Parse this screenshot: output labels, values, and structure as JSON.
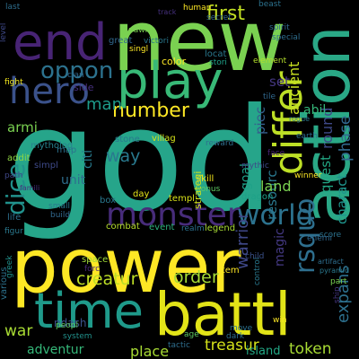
{
  "wordcloud": {
    "background": "#000000",
    "palette": [
      "#440154",
      "#482878",
      "#3e4989",
      "#31688e",
      "#26828e",
      "#1f9e89",
      "#35b779",
      "#6ece58",
      "#b5de2b",
      "#fde725"
    ],
    "words": [
      {
        "text": "god",
        "color": "#26a58a"
      },
      {
        "text": "new",
        "color": "#7ad151"
      },
      {
        "text": "power",
        "color": "#fde725"
      },
      {
        "text": "action",
        "color": "#2aa886"
      },
      {
        "text": "battl",
        "color": "#e2e418"
      },
      {
        "text": "end",
        "color": "#482475"
      },
      {
        "text": "play",
        "color": "#38b977"
      },
      {
        "text": "time",
        "color": "#1f9a8a"
      },
      {
        "text": "hero",
        "color": "#3b528b"
      },
      {
        "text": "differ",
        "color": "#bddf26"
      },
      {
        "text": "monster",
        "color": "#472c7a"
      },
      {
        "text": "world",
        "color": "#2c728e"
      },
      {
        "text": "rsquo",
        "color": "#2e6f8e"
      },
      {
        "text": "dice",
        "color": "#21918c"
      },
      {
        "text": "oppon",
        "color": "#2c728e"
      },
      {
        "text": "first",
        "color": "#c2df23"
      },
      {
        "text": "number",
        "color": "#fde725"
      },
      {
        "text": "creatur",
        "color": "#bddf26"
      },
      {
        "text": "treasur",
        "color": "#d5e21a"
      },
      {
        "text": "order",
        "color": "#a5db36"
      },
      {
        "text": "token",
        "color": "#a8db34"
      },
      {
        "text": "warrior",
        "color": "#3f4889"
      },
      {
        "text": "expans",
        "color": "#2d708e"
      },
      {
        "text": "phase",
        "color": "#31688e"
      },
      {
        "text": "quest",
        "color": "#22a884"
      },
      {
        "text": "charact",
        "color": "#1f948c"
      },
      {
        "text": "resourc",
        "color": "#2a788e"
      },
      {
        "text": "ancient",
        "color": "#c8e020"
      },
      {
        "text": "round",
        "color": "#3e4989"
      },
      {
        "text": "land",
        "color": "#7ad151"
      },
      {
        "text": "goal",
        "color": "#1fa188"
      },
      {
        "text": "way",
        "color": "#29798e"
      },
      {
        "text": "set",
        "color": "#453781"
      },
      {
        "text": "abil",
        "color": "#35b779"
      },
      {
        "text": "man",
        "color": "#1e9b8a"
      },
      {
        "text": "armi",
        "color": "#7ad151"
      },
      {
        "text": "unit",
        "color": "#2e6e8e"
      },
      {
        "text": "citi",
        "color": "#287c8e"
      },
      {
        "text": "piec",
        "color": "#355f8d"
      },
      {
        "text": "strategi",
        "color": "#d2e21b"
      },
      {
        "text": "war",
        "color": "#a8db34"
      },
      {
        "text": "place",
        "color": "#a8db34"
      },
      {
        "text": "adventur",
        "color": "#35b779"
      },
      {
        "text": "island",
        "color": "#22a785"
      },
      {
        "text": "ndash",
        "color": "#3b528b"
      },
      {
        "text": "magic",
        "color": "#443983"
      },
      {
        "text": "color",
        "color": "#fde725"
      },
      {
        "text": "element",
        "color": "#b5de2b"
      },
      {
        "text": "stori",
        "color": "#1fa088"
      },
      {
        "text": "locat",
        "color": "#2a788e"
      },
      {
        "text": "side",
        "color": "#46307e"
      },
      {
        "text": "mytholog",
        "color": "#26828e"
      },
      {
        "text": "stone",
        "color": "#29798e"
      },
      {
        "text": "villag",
        "color": "#d5e21a"
      },
      {
        "text": "templ",
        "color": "#d8e219"
      },
      {
        "text": "day",
        "color": "#e5e419"
      },
      {
        "text": "skill",
        "color": "#f1e51d"
      },
      {
        "text": "bonus",
        "color": "#5ec962"
      },
      {
        "text": "box",
        "color": "#2a788e"
      },
      {
        "text": "map",
        "color": "#2c728e"
      },
      {
        "text": "simpl",
        "color": "#3e4a89"
      },
      {
        "text": "path",
        "color": "#3f4889"
      },
      {
        "text": "addit",
        "color": "#90d743"
      },
      {
        "text": "life",
        "color": "#2e6e8e"
      },
      {
        "text": "figur",
        "color": "#2a788e"
      },
      {
        "text": "build",
        "color": "#31688e"
      },
      {
        "text": "small",
        "color": "#29798e"
      },
      {
        "text": "combat",
        "color": "#b5de2b"
      },
      {
        "text": "event",
        "color": "#2db27d"
      },
      {
        "text": "realm",
        "color": "#2c728e"
      },
      {
        "text": "legend",
        "color": "#a8db34"
      },
      {
        "text": "space",
        "color": "#a0da39"
      },
      {
        "text": "forc",
        "color": "#482878"
      },
      {
        "text": "item",
        "color": "#fde725"
      },
      {
        "text": "dragon",
        "color": "#1fa188"
      },
      {
        "text": "earth",
        "color": "#2e6f8e"
      },
      {
        "text": "winner",
        "color": "#fde725"
      },
      {
        "text": "face",
        "color": "#482475"
      },
      {
        "text": "reward",
        "color": "#2e6e8e"
      },
      {
        "text": "great",
        "color": "#31688e"
      },
      {
        "text": "pawn",
        "color": "#7ad151"
      },
      {
        "text": "singl",
        "color": "#fde725"
      },
      {
        "text": "victori",
        "color": "#2a788e"
      },
      {
        "text": "human",
        "color": "#fde725"
      },
      {
        "text": "beast",
        "color": "#2c728e"
      },
      {
        "text": "last",
        "color": "#2e6e8e"
      },
      {
        "text": "level",
        "color": "#3e4989"
      },
      {
        "text": "fight",
        "color": "#f1e51d"
      },
      {
        "text": "clan",
        "color": "#31688e"
      },
      {
        "text": "spirit",
        "color": "#31688e"
      },
      {
        "text": "special",
        "color": "#2e6e8e"
      },
      {
        "text": "tile",
        "color": "#31688e"
      },
      {
        "text": "control",
        "color": "#29798e"
      },
      {
        "text": "dark",
        "color": "#2e6e8e"
      },
      {
        "text": "move",
        "color": "#2c728e"
      },
      {
        "text": "peopl",
        "color": "#5ec962"
      },
      {
        "text": "system",
        "color": "#21918c"
      },
      {
        "text": "various",
        "color": "#2c728e"
      },
      {
        "text": "greek",
        "color": "#21918c"
      },
      {
        "text": "child",
        "color": "#3b528b"
      },
      {
        "text": "score",
        "color": "#2c728e"
      },
      {
        "text": "enemi",
        "color": "#31688e"
      },
      {
        "text": "tactic",
        "color": "#2e6e8e"
      },
      {
        "text": "age",
        "color": "#5ec962"
      },
      {
        "text": "part",
        "color": "#7ad151"
      },
      {
        "text": "famili",
        "color": "#46307e"
      },
      {
        "text": "track",
        "color": "#46307e"
      },
      {
        "text": "pyramid",
        "color": "#2a788e"
      },
      {
        "text": "ship",
        "color": "#453781"
      },
      {
        "text": "secret",
        "color": "#31688e"
      },
      {
        "text": "artifact",
        "color": "#2e6e8e"
      },
      {
        "text": "mythic",
        "color": "#3e4989"
      },
      {
        "text": "rogue",
        "color": "#2a788e"
      },
      {
        "text": "win",
        "color": "#fde725"
      }
    ]
  }
}
